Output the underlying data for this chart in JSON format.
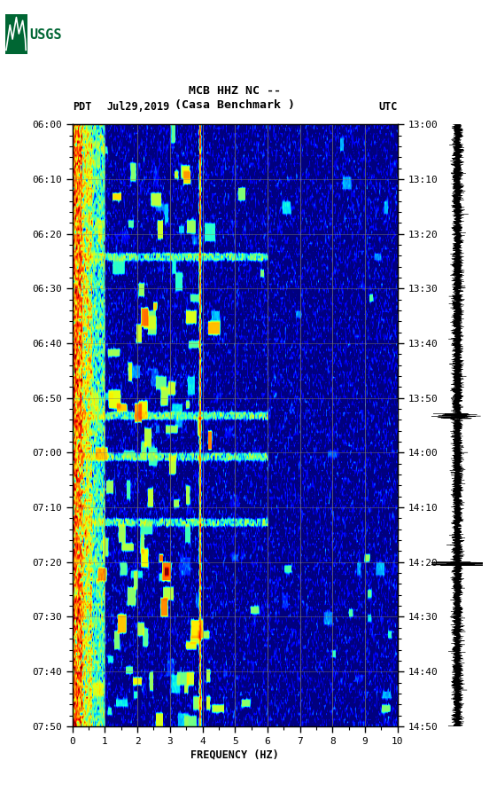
{
  "title_line1": "MCB HHZ NC --",
  "title_line2": "(Casa Benchmark )",
  "left_label": "PDT",
  "right_label": "UTC",
  "date_label": "Jul29,2019",
  "xlabel": "FREQUENCY (HZ)",
  "freq_min": 0,
  "freq_max": 10,
  "pdt_ticks": [
    "06:00",
    "06:10",
    "06:20",
    "06:30",
    "06:40",
    "06:50",
    "07:00",
    "07:10",
    "07:20",
    "07:30",
    "07:40",
    "07:50"
  ],
  "utc_ticks": [
    "13:00",
    "13:10",
    "13:20",
    "13:30",
    "13:40",
    "13:50",
    "14:00",
    "14:10",
    "14:20",
    "14:30",
    "14:40",
    "14:50"
  ],
  "freq_ticks": [
    0,
    1,
    2,
    3,
    4,
    5,
    6,
    7,
    8,
    9,
    10
  ],
  "n_time": 220,
  "n_freq": 400,
  "background_color": "#ffffff",
  "usgs_color": "#006633",
  "vertical_lines_freq": [
    1.0,
    2.0,
    3.0,
    4.0,
    5.0,
    6.0,
    7.0,
    8.0,
    9.0
  ],
  "vline_color": "#888866",
  "hline_color": "#888866"
}
